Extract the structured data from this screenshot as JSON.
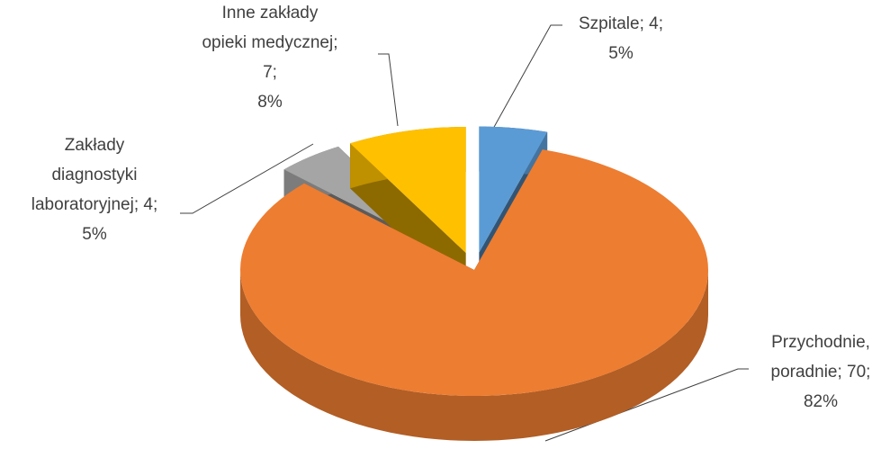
{
  "chart_data": {
    "type": "pie3d",
    "categories": [
      "Szpitale",
      "Przychodnie, poradnie",
      "Zakłady diagnostyki laboratoryjnej",
      "Inne zakłady opieki medycznej"
    ],
    "values": [
      4,
      70,
      4,
      7
    ],
    "colors": [
      "#5b9bd5",
      "#ed7d31",
      "#a5a5a5",
      "#ffc000"
    ],
    "value_labels": [
      [
        "Szpitale; 4;",
        "5%"
      ],
      [
        "Przychodnie,",
        "poradnie; 70;",
        "82%"
      ],
      [
        "Zakłady",
        "diagnostyki",
        "laboratoryjnej; 4;",
        "5%"
      ],
      [
        "Inne zakłady",
        "opieki medycznej;",
        "7;",
        "8%"
      ]
    ]
  }
}
